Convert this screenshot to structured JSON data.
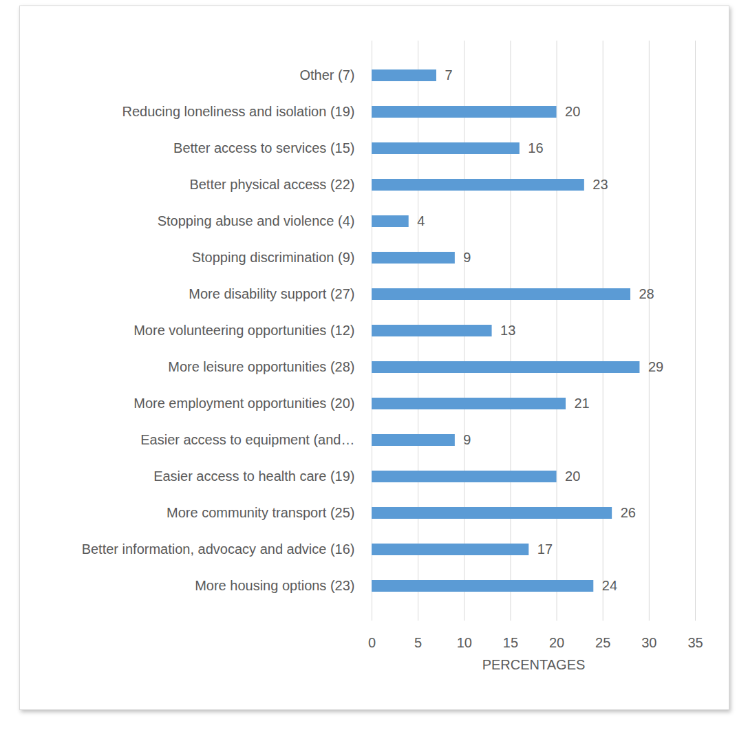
{
  "chart_data": {
    "type": "bar",
    "orientation": "horizontal",
    "categories": [
      "Other (7)",
      "Reducing loneliness and isolation (19)",
      "Better access to services (15)",
      "Better physical access (22)",
      "Stopping abuse and violence (4)",
      "Stopping discrimination (9)",
      "More disability support (27)",
      "More volunteering opportunities (12)",
      "More leisure opportunities (28)",
      "More employment opportunities (20)",
      "Easier access to equipment (and…",
      "Easier access to health care (19)",
      "More community transport (25)",
      "Better information, advocacy and advice (16)",
      "More housing options (23)"
    ],
    "values": [
      7,
      20,
      16,
      23,
      4,
      9,
      28,
      13,
      29,
      21,
      9,
      20,
      26,
      17,
      24
    ],
    "color": "#5b9bd5",
    "x_label": "PERCENTAGES",
    "xlim": [
      0,
      35
    ],
    "xticks": [
      0,
      5,
      10,
      15,
      20,
      25,
      30,
      35
    ],
    "grid": true,
    "data_labels": true
  }
}
